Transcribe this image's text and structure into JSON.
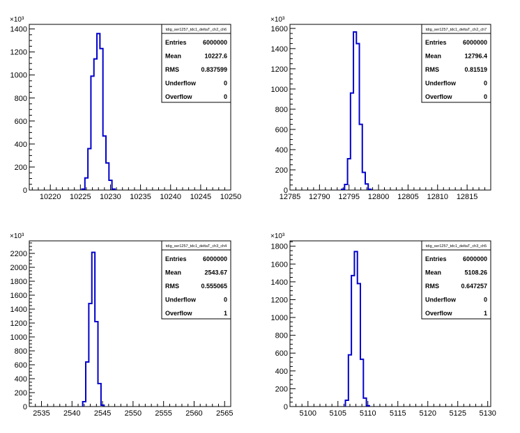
{
  "chart_data": [
    {
      "type": "histogram",
      "stats_title": "tdig_ser1257_tdc1_deltaT_ch2_ch6",
      "stats": [
        {
          "label": "Entries",
          "value": "6000000"
        },
        {
          "label": "Mean",
          "value": "10227.6"
        },
        {
          "label": "RMS",
          "value": "0.837599"
        },
        {
          "label": "Underflow",
          "value": "0"
        },
        {
          "label": "Overflow",
          "value": "0"
        }
      ],
      "y_multiplier": "×10³",
      "xlim": [
        10216.5,
        10250
      ],
      "ylim": [
        0,
        1440
      ],
      "xticks": [
        10220,
        10225,
        10230,
        10235,
        10240,
        10245,
        10250
      ],
      "yticks": [
        0,
        200,
        400,
        600,
        800,
        1000,
        1200,
        1400
      ],
      "bin_width": 0.5,
      "bins": [
        {
          "x": 10225.5,
          "y": 8
        },
        {
          "x": 10226.0,
          "y": 105
        },
        {
          "x": 10226.5,
          "y": 360
        },
        {
          "x": 10227.0,
          "y": 990
        },
        {
          "x": 10227.5,
          "y": 1140
        },
        {
          "x": 10228.0,
          "y": 1360
        },
        {
          "x": 10228.5,
          "y": 1230
        },
        {
          "x": 10229.0,
          "y": 470
        },
        {
          "x": 10229.5,
          "y": 235
        },
        {
          "x": 10230.0,
          "y": 85
        },
        {
          "x": 10230.5,
          "y": 8
        }
      ]
    },
    {
      "type": "histogram",
      "stats_title": "tdig_ser1257_tdc1_deltaT_ch2_ch7",
      "stats": [
        {
          "label": "Entries",
          "value": "6000000"
        },
        {
          "label": "Mean",
          "value": "12796.4"
        },
        {
          "label": "RMS",
          "value": "0.81519"
        },
        {
          "label": "Underflow",
          "value": "0"
        },
        {
          "label": "Overflow",
          "value": "0"
        }
      ],
      "y_multiplier": "×10³",
      "xlim": [
        12785,
        12819
      ],
      "ylim": [
        0,
        1640
      ],
      "xticks": [
        12785,
        12790,
        12795,
        12800,
        12805,
        12810,
        12815
      ],
      "yticks": [
        0,
        200,
        400,
        600,
        800,
        1000,
        1200,
        1400,
        1600
      ],
      "bin_width": 0.5,
      "bins": [
        {
          "x": 12794.0,
          "y": 8
        },
        {
          "x": 12794.5,
          "y": 55
        },
        {
          "x": 12795.0,
          "y": 310
        },
        {
          "x": 12795.5,
          "y": 960
        },
        {
          "x": 12796.0,
          "y": 1565
        },
        {
          "x": 12796.5,
          "y": 1450
        },
        {
          "x": 12797.0,
          "y": 650
        },
        {
          "x": 12797.5,
          "y": 175
        },
        {
          "x": 12798.0,
          "y": 60
        },
        {
          "x": 12798.5,
          "y": 8
        }
      ]
    },
    {
      "type": "histogram",
      "stats_title": "tdig_ser1257_tdc1_deltaT_ch3_ch4",
      "stats": [
        {
          "label": "Entries",
          "value": "6000000"
        },
        {
          "label": "Mean",
          "value": "2543.67"
        },
        {
          "label": "RMS",
          "value": "0.555065"
        },
        {
          "label": "Underflow",
          "value": "0"
        },
        {
          "label": "Overflow",
          "value": "1"
        }
      ],
      "y_multiplier": "×10³",
      "xlim": [
        2533,
        2566
      ],
      "ylim": [
        0,
        2380
      ],
      "xticks": [
        2535,
        2540,
        2545,
        2550,
        2555,
        2560,
        2565
      ],
      "yticks": [
        0,
        200,
        400,
        600,
        800,
        1000,
        1200,
        1400,
        1600,
        1800,
        2000,
        2200
      ],
      "bin_width": 0.5,
      "bins": [
        {
          "x": 2542.0,
          "y": 70
        },
        {
          "x": 2542.5,
          "y": 640
        },
        {
          "x": 2543.0,
          "y": 1480
        },
        {
          "x": 2543.5,
          "y": 2215
        },
        {
          "x": 2544.0,
          "y": 1220
        },
        {
          "x": 2544.5,
          "y": 330
        },
        {
          "x": 2545.0,
          "y": 20
        }
      ]
    },
    {
      "type": "histogram",
      "stats_title": "tdig_ser1257_tdc1_deltaT_ch3_ch5",
      "stats": [
        {
          "label": "Entries",
          "value": "6000000"
        },
        {
          "label": "Mean",
          "value": "5108.26"
        },
        {
          "label": "RMS",
          "value": "0.647257"
        },
        {
          "label": "Underflow",
          "value": "0"
        },
        {
          "label": "Overflow",
          "value": "1"
        }
      ],
      "y_multiplier": "×10³",
      "xlim": [
        5097,
        5130.5
      ],
      "ylim": [
        0,
        1860
      ],
      "xticks": [
        5100,
        5105,
        5110,
        5115,
        5120,
        5125,
        5130
      ],
      "yticks": [
        0,
        200,
        400,
        600,
        800,
        1000,
        1200,
        1400,
        1600,
        1800
      ],
      "bin_width": 0.5,
      "bins": [
        {
          "x": 5106.5,
          "y": 70
        },
        {
          "x": 5107.0,
          "y": 580
        },
        {
          "x": 5107.5,
          "y": 1470
        },
        {
          "x": 5108.0,
          "y": 1740
        },
        {
          "x": 5108.5,
          "y": 1380
        },
        {
          "x": 5109.0,
          "y": 530
        },
        {
          "x": 5109.5,
          "y": 95
        },
        {
          "x": 5110.0,
          "y": 10
        }
      ]
    }
  ],
  "colors": {
    "histogram_line": "#0000cc",
    "axes": "#000000",
    "background": "#ffffff"
  }
}
